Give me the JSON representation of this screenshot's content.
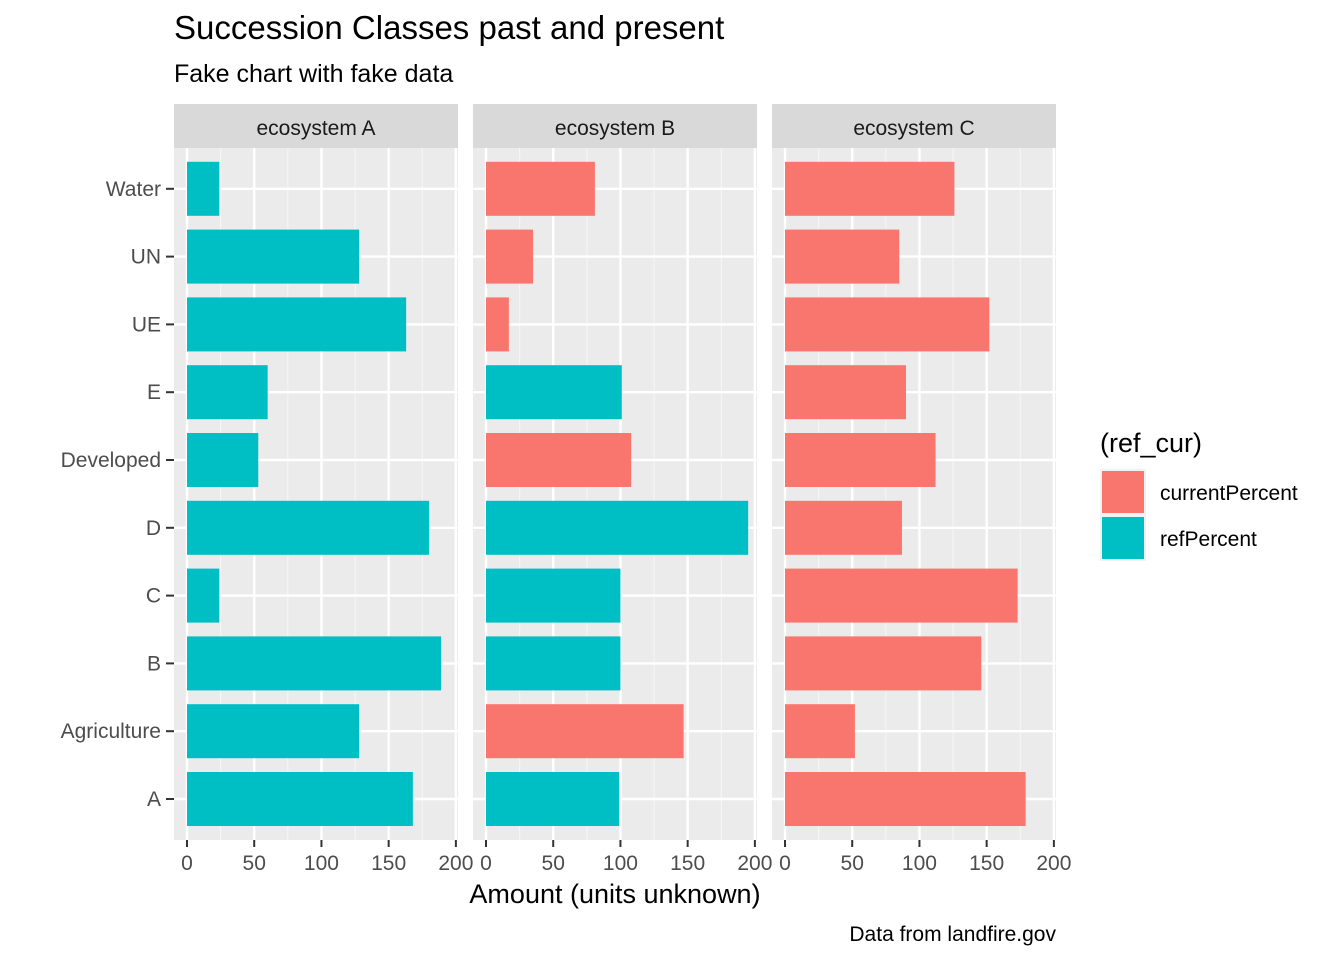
{
  "chart_data": {
    "type": "bar",
    "orientation": "horizontal",
    "title": "Succession Classes past and present",
    "subtitle": "Fake chart with fake data",
    "xlabel": "Amount (units unknown)",
    "ylabel": "",
    "caption": "Data from landfire.gov",
    "xlim": [
      0,
      200
    ],
    "x_ticks": [
      0,
      50,
      100,
      150,
      200
    ],
    "categories": [
      "A",
      "Agriculture",
      "B",
      "C",
      "D",
      "Developed",
      "E",
      "UE",
      "UN",
      "Water"
    ],
    "legend": {
      "title": "(ref_cur)",
      "position": "right",
      "entries": [
        {
          "name": "currentPercent",
          "color": "#F8766D"
        },
        {
          "name": "refPercent",
          "color": "#00BFC4"
        }
      ]
    },
    "grid": true,
    "facets": [
      {
        "label": "ecosystem A",
        "bars": [
          {
            "category": "A",
            "value": 168,
            "series": "refPercent"
          },
          {
            "category": "Agriculture",
            "value": 128,
            "series": "refPercent"
          },
          {
            "category": "B",
            "value": 189,
            "series": "refPercent"
          },
          {
            "category": "C",
            "value": 24,
            "series": "refPercent"
          },
          {
            "category": "D",
            "value": 180,
            "series": "refPercent"
          },
          {
            "category": "Developed",
            "value": 53,
            "series": "refPercent"
          },
          {
            "category": "E",
            "value": 60,
            "series": "refPercent"
          },
          {
            "category": "UE",
            "value": 163,
            "series": "refPercent"
          },
          {
            "category": "UN",
            "value": 128,
            "series": "refPercent"
          },
          {
            "category": "Water",
            "value": 24,
            "series": "refPercent"
          }
        ]
      },
      {
        "label": "ecosystem B",
        "bars": [
          {
            "category": "A",
            "value": 99,
            "series": "refPercent"
          },
          {
            "category": "Agriculture",
            "value": 147,
            "series": "currentPercent"
          },
          {
            "category": "B",
            "value": 100,
            "series": "refPercent"
          },
          {
            "category": "C",
            "value": 100,
            "series": "refPercent"
          },
          {
            "category": "D",
            "value": 195,
            "series": "refPercent"
          },
          {
            "category": "Developed",
            "value": 108,
            "series": "currentPercent"
          },
          {
            "category": "E",
            "value": 101,
            "series": "refPercent"
          },
          {
            "category": "UE",
            "value": 17,
            "series": "currentPercent"
          },
          {
            "category": "UN",
            "value": 35,
            "series": "currentPercent"
          },
          {
            "category": "Water",
            "value": 81,
            "series": "currentPercent"
          }
        ]
      },
      {
        "label": "ecosystem C",
        "bars": [
          {
            "category": "A",
            "value": 179,
            "series": "currentPercent"
          },
          {
            "category": "Agriculture",
            "value": 52,
            "series": "currentPercent"
          },
          {
            "category": "B",
            "value": 146,
            "series": "currentPercent"
          },
          {
            "category": "C",
            "value": 173,
            "series": "currentPercent"
          },
          {
            "category": "D",
            "value": 87,
            "series": "currentPercent"
          },
          {
            "category": "Developed",
            "value": 112,
            "series": "currentPercent"
          },
          {
            "category": "E",
            "value": 90,
            "series": "currentPercent"
          },
          {
            "category": "UE",
            "value": 152,
            "series": "currentPercent"
          },
          {
            "category": "UN",
            "value": 85,
            "series": "currentPercent"
          },
          {
            "category": "Water",
            "value": 126,
            "series": "currentPercent"
          }
        ]
      }
    ]
  }
}
